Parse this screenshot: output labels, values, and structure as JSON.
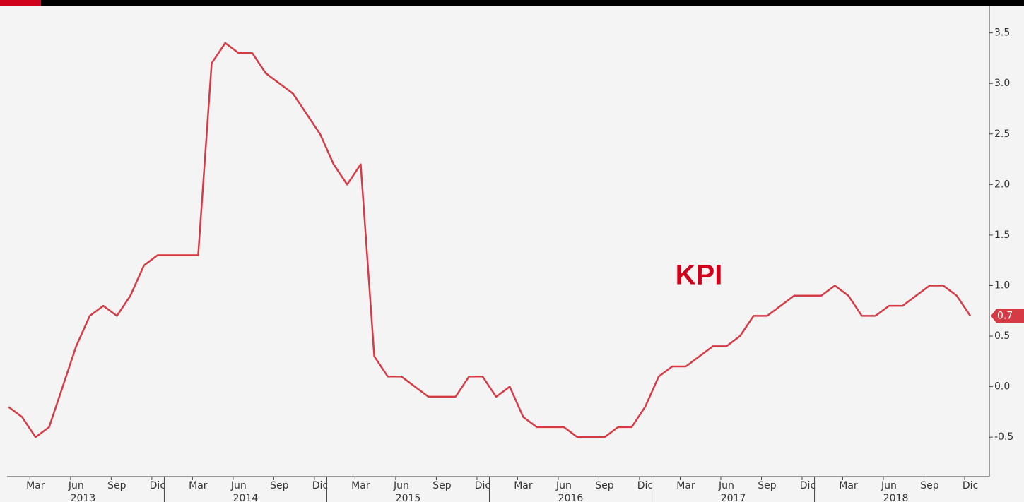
{
  "chart_data": {
    "type": "line",
    "annotation": "KPI",
    "categories": [
      null,
      null,
      "Mar",
      null,
      null,
      "Jun",
      null,
      null,
      "Sep",
      null,
      null,
      "Dic",
      null,
      null,
      "Mar",
      null,
      null,
      "Jun",
      null,
      null,
      "Sep",
      null,
      null,
      "Dic",
      null,
      null,
      "Mar",
      null,
      null,
      "Jun",
      null,
      null,
      "Sep",
      null,
      null,
      "Dic",
      null,
      null,
      "Mar",
      null,
      null,
      "Jun",
      null,
      null,
      "Sep",
      null,
      null,
      "Dic",
      null,
      null,
      "Mar",
      null,
      null,
      "Jun",
      null,
      null,
      "Sep",
      null,
      null,
      "Dic",
      null,
      null,
      "Mar",
      null,
      null,
      "Jun",
      null,
      null,
      "Sep",
      null,
      null,
      "Dic"
    ],
    "years": [
      "2013",
      "2014",
      "2015",
      "2016",
      "2017",
      "2018"
    ],
    "series": [
      {
        "name": "KPI",
        "color": "#d63a45",
        "values": [
          -0.2,
          -0.3,
          -0.5,
          -0.4,
          0.0,
          0.4,
          0.7,
          0.8,
          0.7,
          0.9,
          1.2,
          1.3,
          1.3,
          1.3,
          1.3,
          3.2,
          3.4,
          3.3,
          3.3,
          3.1,
          3.0,
          2.9,
          2.7,
          2.5,
          2.2,
          2.0,
          2.2,
          0.3,
          0.1,
          0.1,
          0.0,
          -0.1,
          -0.1,
          -0.1,
          0.1,
          0.1,
          -0.1,
          0.0,
          -0.3,
          -0.4,
          -0.4,
          -0.4,
          -0.5,
          -0.5,
          -0.5,
          -0.4,
          -0.4,
          -0.2,
          0.1,
          0.2,
          0.2,
          0.3,
          0.4,
          0.4,
          0.5,
          0.7,
          0.7,
          0.8,
          0.9,
          0.9,
          0.9,
          1.0,
          0.9,
          0.7,
          0.7,
          0.8,
          0.8,
          0.9,
          1.0,
          1.0,
          0.9,
          0.7
        ]
      }
    ],
    "ylim": [
      -0.89,
      3.77
    ],
    "yticks": [
      {
        "value": -0.5,
        "label": "-0.5"
      },
      {
        "value": 0,
        "label": "0.0"
      },
      0.5,
      {
        "value": 1,
        "label": "1.0"
      },
      1.5,
      {
        "value": 2,
        "label": "2.0"
      },
      2.5,
      {
        "value": 3,
        "label": "3.0"
      },
      3.5
    ],
    "annotation_color": "#d0021b"
  }
}
